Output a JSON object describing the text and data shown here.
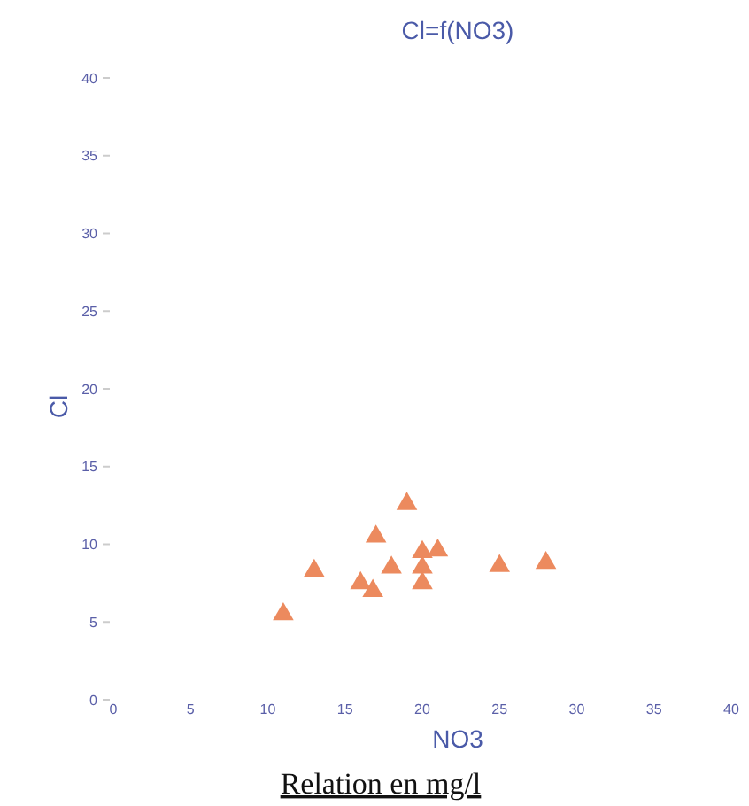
{
  "chart_data": {
    "type": "scatter",
    "title": "Cl=f(NO3)",
    "xlabel": "NO3",
    "ylabel": "Cl",
    "annotations": [
      "Relation en mg/l"
    ],
    "x": [
      11,
      13,
      16,
      16.8,
      17,
      18,
      19,
      20,
      20,
      20,
      21,
      25,
      28
    ],
    "series": [
      {
        "color": "#ec8a5e",
        "values": [
          5.5,
          8.3,
          7.5,
          7.0,
          10.5,
          8.5,
          12.6,
          9.5,
          8.5,
          7.5,
          9.6,
          8.6,
          8.8
        ]
      }
    ],
    "xlim": [
      0,
      40
    ],
    "xticks": [
      0,
      5,
      10,
      15,
      20,
      25,
      30,
      35,
      40
    ],
    "ylim": [
      0,
      40
    ],
    "yticks": [
      0,
      5,
      10,
      15,
      20,
      25,
      30,
      35,
      40
    ],
    "marker": "triangle",
    "grid": false
  }
}
